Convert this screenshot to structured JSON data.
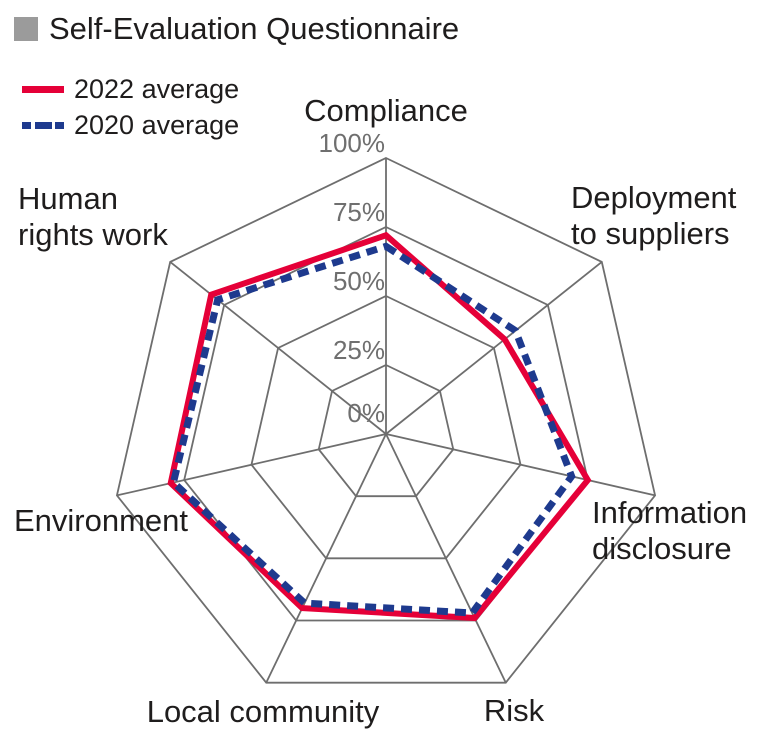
{
  "title": {
    "text": "Self-Evaluation Questionnaire",
    "bullet_color": "#9b9b9b"
  },
  "legend": {
    "items": [
      {
        "label": "2022 average",
        "color": "#e50038",
        "style": "solid"
      },
      {
        "label": "2020 average",
        "color": "#1e3a8e",
        "style": "dashed"
      }
    ]
  },
  "chart_data": {
    "type": "radar",
    "categories": [
      "Compliance",
      "Deployment to suppliers",
      "Information disclosure",
      "Risk",
      "Local community",
      "Environment",
      "Human rights work"
    ],
    "series": [
      {
        "name": "2022 average",
        "color": "#e50038",
        "style": "solid",
        "stroke_width": 6,
        "values": [
          72,
          55,
          75,
          74,
          70,
          80,
          81
        ]
      },
      {
        "name": "2020 average",
        "color": "#1e3a8e",
        "style": "dashed",
        "stroke_width": 7,
        "values": [
          68,
          60,
          69,
          72,
          68,
          79,
          78
        ]
      }
    ],
    "ticks": [
      {
        "label": "0%",
        "value": 0
      },
      {
        "label": "25%",
        "value": 25
      },
      {
        "label": "50%",
        "value": 50
      },
      {
        "label": "75%",
        "value": 75
      },
      {
        "label": "100%",
        "value": 100
      }
    ],
    "rmin": 0,
    "rmax": 100,
    "grid": true,
    "grid_color": "#6e6e6e",
    "tick_color": "#6f6f6f",
    "legend_position": "top-left",
    "axis_labels": {
      "compliance": "Compliance",
      "deployment": "Deployment\nto suppliers",
      "information": "Information\ndisclosure",
      "risk": "Risk",
      "local_community": "Local community",
      "environment": "Environment",
      "human_rights": "Human\nrights work"
    }
  }
}
